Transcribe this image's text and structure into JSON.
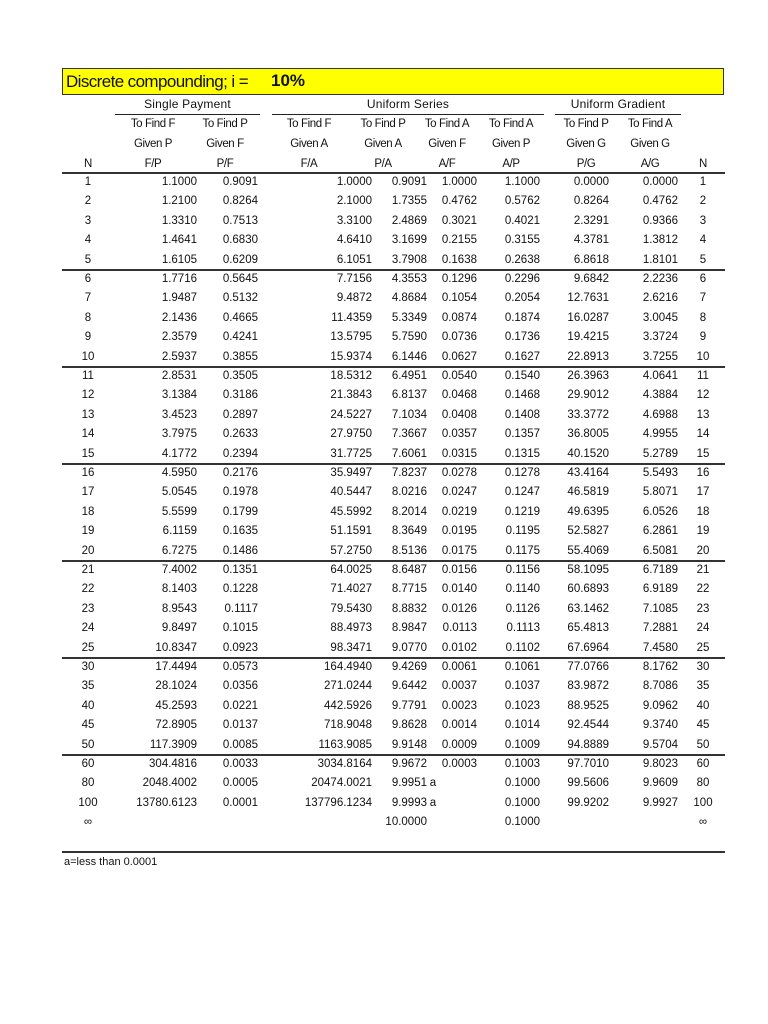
{
  "title": {
    "label": "Discrete compounding; i =",
    "rate": "10%",
    "highlight_color": "#ffff00"
  },
  "groups": [
    "Single Payment",
    "Uniform Series",
    "Uniform Gradient"
  ],
  "columns": [
    {
      "l1": "",
      "l2": "",
      "l3": "N"
    },
    {
      "l1": "To Find F",
      "l2": "Given P",
      "l3": "F/P"
    },
    {
      "l1": "To Find P",
      "l2": "Given F",
      "l3": "P/F"
    },
    {
      "l1": "To Find F",
      "l2": "Given A",
      "l3": "F/A"
    },
    {
      "l1": "To Find P",
      "l2": "Given A",
      "l3": "P/A"
    },
    {
      "l1": "To Find A",
      "l2": "Given F",
      "l3": "A/F"
    },
    {
      "l1": "To Find A",
      "l2": "Given P",
      "l3": "A/P"
    },
    {
      "l1": "To Find P",
      "l2": "Given G",
      "l3": "P/G"
    },
    {
      "l1": "To Find A",
      "l2": "Given G",
      "l3": "A/G"
    },
    {
      "l1": "",
      "l2": "",
      "l3": "N"
    }
  ],
  "rows": [
    [
      "1",
      "1.1000",
      "0.9091",
      "1.0000",
      "0.9091",
      "1.0000",
      "1.1000",
      "0.0000",
      "0.0000",
      "1"
    ],
    [
      "2",
      "1.2100",
      "0.8264",
      "2.1000",
      "1.7355",
      "0.4762",
      "0.5762",
      "0.8264",
      "0.4762",
      "2"
    ],
    [
      "3",
      "1.3310",
      "0.7513",
      "3.3100",
      "2.4869",
      "0.3021",
      "0.4021",
      "2.3291",
      "0.9366",
      "3"
    ],
    [
      "4",
      "1.4641",
      "0.6830",
      "4.6410",
      "3.1699",
      "0.2155",
      "0.3155",
      "4.3781",
      "1.3812",
      "4"
    ],
    [
      "5",
      "1.6105",
      "0.6209",
      "6.1051",
      "3.7908",
      "0.1638",
      "0.2638",
      "6.8618",
      "1.8101",
      "5"
    ],
    [
      "6",
      "1.7716",
      "0.5645",
      "7.7156",
      "4.3553",
      "0.1296",
      "0.2296",
      "9.6842",
      "2.2236",
      "6"
    ],
    [
      "7",
      "1.9487",
      "0.5132",
      "9.4872",
      "4.8684",
      "0.1054",
      "0.2054",
      "12.7631",
      "2.6216",
      "7"
    ],
    [
      "8",
      "2.1436",
      "0.4665",
      "11.4359",
      "5.3349",
      "0.0874",
      "0.1874",
      "16.0287",
      "3.0045",
      "8"
    ],
    [
      "9",
      "2.3579",
      "0.4241",
      "13.5795",
      "5.7590",
      "0.0736",
      "0.1736",
      "19.4215",
      "3.3724",
      "9"
    ],
    [
      "10",
      "2.5937",
      "0.3855",
      "15.9374",
      "6.1446",
      "0.0627",
      "0.1627",
      "22.8913",
      "3.7255",
      "10"
    ],
    [
      "11",
      "2.8531",
      "0.3505",
      "18.5312",
      "6.4951",
      "0.0540",
      "0.1540",
      "26.3963",
      "4.0641",
      "11"
    ],
    [
      "12",
      "3.1384",
      "0.3186",
      "21.3843",
      "6.8137",
      "0.0468",
      "0.1468",
      "29.9012",
      "4.3884",
      "12"
    ],
    [
      "13",
      "3.4523",
      "0.2897",
      "24.5227",
      "7.1034",
      "0.0408",
      "0.1408",
      "33.3772",
      "4.6988",
      "13"
    ],
    [
      "14",
      "3.7975",
      "0.2633",
      "27.9750",
      "7.3667",
      "0.0357",
      "0.1357",
      "36.8005",
      "4.9955",
      "14"
    ],
    [
      "15",
      "4.1772",
      "0.2394",
      "31.7725",
      "7.6061",
      "0.0315",
      "0.1315",
      "40.1520",
      "5.2789",
      "15"
    ],
    [
      "16",
      "4.5950",
      "0.2176",
      "35.9497",
      "7.8237",
      "0.0278",
      "0.1278",
      "43.4164",
      "5.5493",
      "16"
    ],
    [
      "17",
      "5.0545",
      "0.1978",
      "40.5447",
      "8.0216",
      "0.0247",
      "0.1247",
      "46.5819",
      "5.8071",
      "17"
    ],
    [
      "18",
      "5.5599",
      "0.1799",
      "45.5992",
      "8.2014",
      "0.0219",
      "0.1219",
      "49.6395",
      "6.0526",
      "18"
    ],
    [
      "19",
      "6.1159",
      "0.1635",
      "51.1591",
      "8.3649",
      "0.0195",
      "0.1195",
      "52.5827",
      "6.2861",
      "19"
    ],
    [
      "20",
      "6.7275",
      "0.1486",
      "57.2750",
      "8.5136",
      "0.0175",
      "0.1175",
      "55.4069",
      "6.5081",
      "20"
    ],
    [
      "21",
      "7.4002",
      "0.1351",
      "64.0025",
      "8.6487",
      "0.0156",
      "0.1156",
      "58.1095",
      "6.7189",
      "21"
    ],
    [
      "22",
      "8.1403",
      "0.1228",
      "71.4027",
      "8.7715",
      "0.0140",
      "0.1140",
      "60.6893",
      "6.9189",
      "22"
    ],
    [
      "23",
      "8.9543",
      "0.1117",
      "79.5430",
      "8.8832",
      "0.0126",
      "0.1126",
      "63.1462",
      "7.1085",
      "23"
    ],
    [
      "24",
      "9.8497",
      "0.1015",
      "88.4973",
      "8.9847",
      "0.0113",
      "0.1113",
      "65.4813",
      "7.2881",
      "24"
    ],
    [
      "25",
      "10.8347",
      "0.0923",
      "98.3471",
      "9.0770",
      "0.0102",
      "0.1102",
      "67.6964",
      "7.4580",
      "25"
    ],
    [
      "30",
      "17.4494",
      "0.0573",
      "164.4940",
      "9.4269",
      "0.0061",
      "0.1061",
      "77.0766",
      "8.1762",
      "30"
    ],
    [
      "35",
      "28.1024",
      "0.0356",
      "271.0244",
      "9.6442",
      "0.0037",
      "0.1037",
      "83.9872",
      "8.7086",
      "35"
    ],
    [
      "40",
      "45.2593",
      "0.0221",
      "442.5926",
      "9.7791",
      "0.0023",
      "0.1023",
      "88.9525",
      "9.0962",
      "40"
    ],
    [
      "45",
      "72.8905",
      "0.0137",
      "718.9048",
      "9.8628",
      "0.0014",
      "0.1014",
      "92.4544",
      "9.3740",
      "45"
    ],
    [
      "50",
      "117.3909",
      "0.0085",
      "1163.9085",
      "9.9148",
      "0.0009",
      "0.1009",
      "94.8889",
      "9.5704",
      "50"
    ],
    [
      "60",
      "304.4816",
      "0.0033",
      "3034.8164",
      "9.9672",
      "0.0003",
      "0.1003",
      "97.7010",
      "9.8023",
      "60"
    ],
    [
      "80",
      "2048.4002",
      "0.0005",
      "20474.0021",
      "9.9951",
      "a",
      "0.1000",
      "99.5606",
      "9.9609",
      "80"
    ],
    [
      "100",
      "13780.6123",
      "0.0001",
      "137796.1234",
      "9.9993",
      "a",
      "0.1000",
      "99.9202",
      "9.9927",
      "100"
    ],
    [
      "∞",
      "",
      "",
      "",
      "10.0000",
      "",
      "0.1000",
      "",
      "",
      "∞"
    ]
  ],
  "footnote": "a=less than 0.0001"
}
